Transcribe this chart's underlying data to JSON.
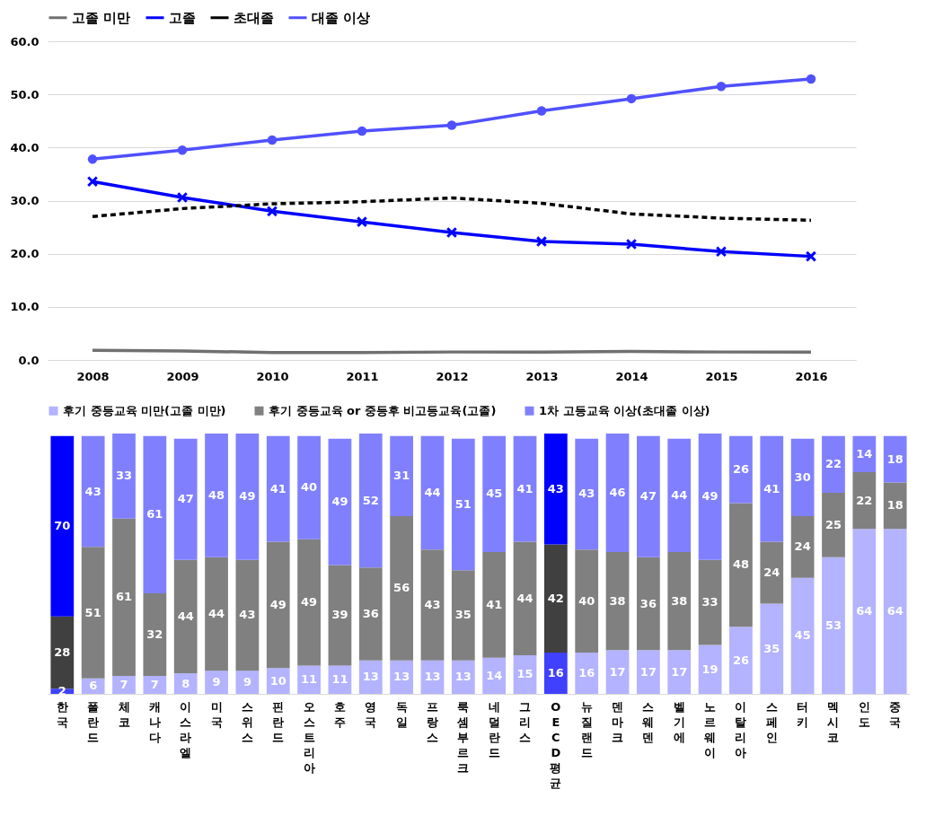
{
  "chart_data": [
    {
      "type": "line",
      "categories": [
        "2008",
        "2009",
        "2010",
        "2011",
        "2012",
        "2013",
        "2014",
        "2015",
        "2016"
      ],
      "ylim": [
        0,
        60
      ],
      "yticks": [
        {
          "value": 0,
          "label": "0.0"
        },
        {
          "value": 10,
          "label": "10.0"
        },
        {
          "value": 20,
          "label": "20.0"
        },
        {
          "value": 30,
          "label": "30.0"
        },
        {
          "value": 40,
          "label": "40.0"
        },
        {
          "value": 50,
          "label": "50.0"
        },
        {
          "value": 60,
          "label": "60.0"
        }
      ],
      "grid": "y",
      "legend": "top",
      "series": [
        {
          "name": "고졸 미만",
          "color": "#707070",
          "marker": "none",
          "line_style": "solid",
          "values": [
            1.8,
            1.7,
            1.4,
            1.4,
            1.5,
            1.5,
            1.6,
            1.5,
            1.5
          ]
        },
        {
          "name": "고졸",
          "color": "#0000ff",
          "marker": "cross",
          "line_style": "solid",
          "values": [
            33.6,
            30.6,
            28.0,
            26.0,
            24.0,
            22.3,
            21.8,
            20.4,
            19.5
          ]
        },
        {
          "name": "초대졸",
          "color": "#000000",
          "marker": "none",
          "line_style": "dashed",
          "values": [
            27.0,
            28.5,
            29.4,
            29.8,
            30.5,
            29.5,
            27.5,
            26.7,
            26.3
          ]
        },
        {
          "name": "대졸 이상",
          "color": "#5050ff",
          "marker": "circle",
          "line_style": "solid",
          "values": [
            37.8,
            39.5,
            41.4,
            43.1,
            44.2,
            46.9,
            49.2,
            51.5,
            52.9
          ]
        }
      ]
    },
    {
      "type": "bar",
      "stacked": true,
      "data_labels": true,
      "legend": "top",
      "categories": [
        "한국",
        "폴란드",
        "체코",
        "캐나다",
        "이스라엘",
        "미국",
        "스위스",
        "핀란드",
        "오스트리아",
        "호주",
        "영국",
        "독일",
        "프랑스",
        "룩셈부르크",
        "네덜란드",
        "그리스",
        "OECD평균",
        "뉴질랜드",
        "덴마크",
        "스웨덴",
        "벨기에",
        "노르웨이",
        "이탈리아",
        "스페인",
        "터키",
        "멕시코",
        "인도",
        "중국"
      ],
      "series": [
        {
          "name": "후기 중등교육 미만(고졸 미만)",
          "color": "#b3b3ff",
          "values": [
            2,
            6,
            7,
            7,
            8,
            9,
            9,
            10,
            11,
            11,
            13,
            13,
            13,
            13,
            14,
            15,
            16,
            16,
            17,
            17,
            17,
            19,
            26,
            35,
            45,
            53,
            64,
            64
          ],
          "colors": [
            "#4040ff",
            "#b3b3ff",
            "#b3b3ff",
            "#b3b3ff",
            "#b3b3ff",
            "#b3b3ff",
            "#b3b3ff",
            "#b3b3ff",
            "#b3b3ff",
            "#b3b3ff",
            "#b3b3ff",
            "#b3b3ff",
            "#b3b3ff",
            "#b3b3ff",
            "#b3b3ff",
            "#b3b3ff",
            "#4040ff",
            "#b3b3ff",
            "#b3b3ff",
            "#b3b3ff",
            "#b3b3ff",
            "#b3b3ff",
            "#b3b3ff",
            "#b3b3ff",
            "#b3b3ff",
            "#b3b3ff",
            "#b3b3ff",
            "#b3b3ff"
          ]
        },
        {
          "name": "후기 중등교육 or 중등후 비고등교육(고졸)",
          "color": "#808080",
          "values": [
            28,
            51,
            61,
            32,
            44,
            44,
            43,
            49,
            49,
            39,
            36,
            56,
            43,
            35,
            41,
            44,
            42,
            40,
            38,
            36,
            38,
            33,
            48,
            24,
            24,
            25,
            22,
            18
          ],
          "colors": [
            "#404040",
            "#808080",
            "#808080",
            "#808080",
            "#808080",
            "#808080",
            "#808080",
            "#808080",
            "#808080",
            "#808080",
            "#808080",
            "#808080",
            "#808080",
            "#808080",
            "#808080",
            "#808080",
            "#404040",
            "#808080",
            "#808080",
            "#808080",
            "#808080",
            "#808080",
            "#808080",
            "#808080",
            "#808080",
            "#808080",
            "#808080",
            "#808080"
          ]
        },
        {
          "name": "1차 고등교육 이상(초대졸 이상)",
          "color": "#8080ff",
          "values": [
            70,
            43,
            33,
            61,
            47,
            48,
            49,
            41,
            40,
            49,
            52,
            31,
            44,
            51,
            45,
            41,
            43,
            43,
            46,
            47,
            44,
            49,
            26,
            41,
            30,
            22,
            14,
            18
          ],
          "colors": [
            "#0000ff",
            "#8080ff",
            "#8080ff",
            "#8080ff",
            "#8080ff",
            "#8080ff",
            "#8080ff",
            "#8080ff",
            "#8080ff",
            "#8080ff",
            "#8080ff",
            "#8080ff",
            "#8080ff",
            "#8080ff",
            "#8080ff",
            "#8080ff",
            "#0000ff",
            "#8080ff",
            "#8080ff",
            "#8080ff",
            "#8080ff",
            "#8080ff",
            "#8080ff",
            "#8080ff",
            "#8080ff",
            "#8080ff",
            "#8080ff",
            "#8080ff"
          ]
        }
      ]
    }
  ]
}
